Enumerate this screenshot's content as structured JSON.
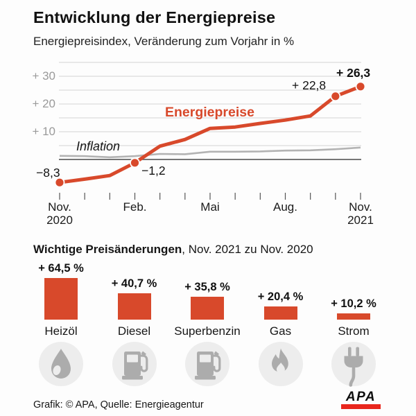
{
  "header": {
    "title": "Entwicklung der Energiepreise",
    "subtitle": "Energiepreisindex, Veränderung zum Vorjahr in %"
  },
  "chart_data": [
    {
      "type": "line",
      "title": "Energiepreisindex, Veränderung zum Vorjahr in %",
      "months_count": 13,
      "x_axis": {
        "tick_labels": [
          {
            "text": "Nov.\n2020",
            "month_index": 0
          },
          {
            "text": "Feb.",
            "month_index": 3
          },
          {
            "text": "Mai",
            "month_index": 6
          },
          {
            "text": "Aug.",
            "month_index": 9
          },
          {
            "text": "Nov.\n2021",
            "month_index": 12
          }
        ]
      },
      "y_axis": {
        "labels": [
          {
            "text": "+ 30",
            "value": 30
          },
          {
            "text": "+ 20",
            "value": 20
          },
          {
            "text": "+ 10",
            "value": 10
          }
        ],
        "gridline_values": [
          35,
          30,
          25,
          20,
          15,
          10,
          5
        ],
        "zero_line_value": 0,
        "ylim": [
          -12,
          36
        ]
      },
      "series": [
        {
          "name": "Energiepreise",
          "color": "#d8492b",
          "values": [
            -8.3,
            -7.1,
            -5.8,
            -1.2,
            4.8,
            7.2,
            11.2,
            11.7,
            13.0,
            14.2,
            15.7,
            22.8,
            26.3
          ]
        },
        {
          "name": "Inflation",
          "color": "#b3b3b3",
          "values": [
            1.3,
            1.2,
            0.8,
            1.2,
            2.0,
            1.9,
            2.8,
            2.8,
            2.9,
            3.2,
            3.3,
            3.7,
            4.3
          ]
        }
      ],
      "annotations": [
        {
          "text": "−8,3",
          "month_index": 0,
          "value": -8.3
        },
        {
          "text": "−1,2",
          "month_index": 3,
          "value": -1.2
        },
        {
          "text": "+ 22,8",
          "month_index": 11,
          "value": 22.8
        },
        {
          "text": "+ 26,3",
          "month_index": 12,
          "value": 26.3
        }
      ],
      "marker_month_indices": [
        0,
        3,
        11,
        12
      ],
      "legend_position": "inline-labels",
      "grid": true
    },
    {
      "type": "bar",
      "heading": "Wichtige Preisänderungen, Nov. 2021 zu Nov. 2020",
      "categories": [
        "Heizöl",
        "Diesel",
        "Superbenzin",
        "Gas",
        "Strom"
      ],
      "values": [
        64.5,
        40.7,
        35.8,
        20.4,
        10.2
      ],
      "value_labels": [
        "+ 64,5 %",
        "+ 40,7 %",
        "+ 35,8 %",
        "+ 20,4 %",
        "+ 10,2 %"
      ],
      "bar_color": "#d8492b",
      "icons": [
        "oil-drop-icon",
        "fuel-pump-icon",
        "fuel-pump-icon",
        "flame-icon",
        "plug-icon"
      ]
    }
  ],
  "bar_section": {
    "heading_bold": "Wichtige Preisänderungen",
    "heading_rest": ", Nov. 2021 zu Nov. 2020"
  },
  "footer": {
    "credit": "Grafik: © APA, Quelle: Energieagentur",
    "logo": "APA"
  },
  "colors": {
    "accent": "#d8492b",
    "inflation_line": "#b3b3b3",
    "grid": "#d2d2d2",
    "zero_line": "#4a4a4a",
    "tick": "#555555",
    "axis_label": "#9a9a9a",
    "text": "#111111",
    "icon_circle": "#ededed",
    "icon_glyph": "#acacac",
    "apa_red": "#e9261d"
  }
}
